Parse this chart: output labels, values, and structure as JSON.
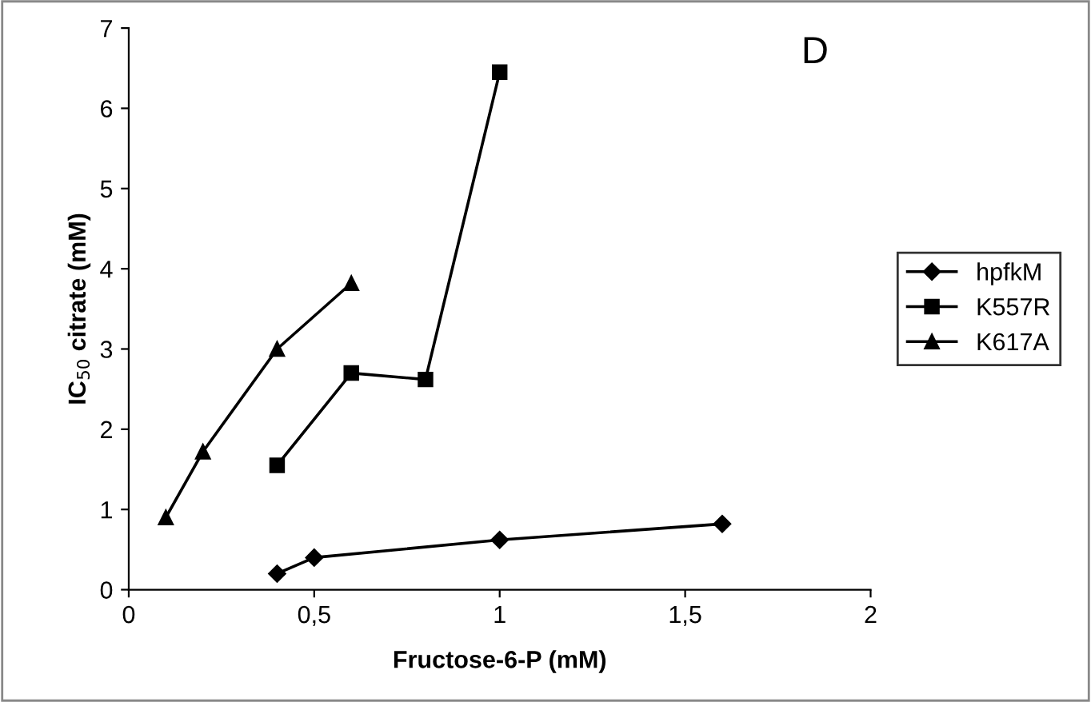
{
  "chart_data": {
    "type": "line",
    "xlabel": "Fructose-6-P (mM)",
    "ylabel": "IC$_{50}$ citrate (mM)",
    "xlim": [
      0,
      2
    ],
    "xticks": [
      0,
      {
        "value": 0.5,
        "label": "0,5"
      },
      1,
      {
        "value": 1.5,
        "label": "1,5"
      },
      2
    ],
    "ylim": [
      0,
      7
    ],
    "yticks": [
      0,
      1,
      2,
      3,
      4,
      5,
      6,
      7
    ],
    "grid": false,
    "legend": "right",
    "annotations": [
      "D"
    ],
    "series": [
      {
        "name": "hpfkM",
        "color": "#000000",
        "marker": "diamond",
        "x": [
          0.4,
          0.5,
          1.0,
          1.6
        ],
        "values": [
          0.2,
          0.4,
          0.62,
          0.82
        ]
      },
      {
        "name": "K557R",
        "color": "#000000",
        "marker": "square",
        "x": [
          0.4,
          0.6,
          0.8,
          1.0
        ],
        "values": [
          1.55,
          2.7,
          2.62,
          6.45
        ]
      },
      {
        "name": "K617A",
        "color": "#000000",
        "marker": "triangle",
        "x": [
          0.1,
          0.2,
          0.4,
          0.6
        ],
        "values": [
          0.9,
          1.72,
          3.0,
          3.82
        ]
      }
    ]
  }
}
